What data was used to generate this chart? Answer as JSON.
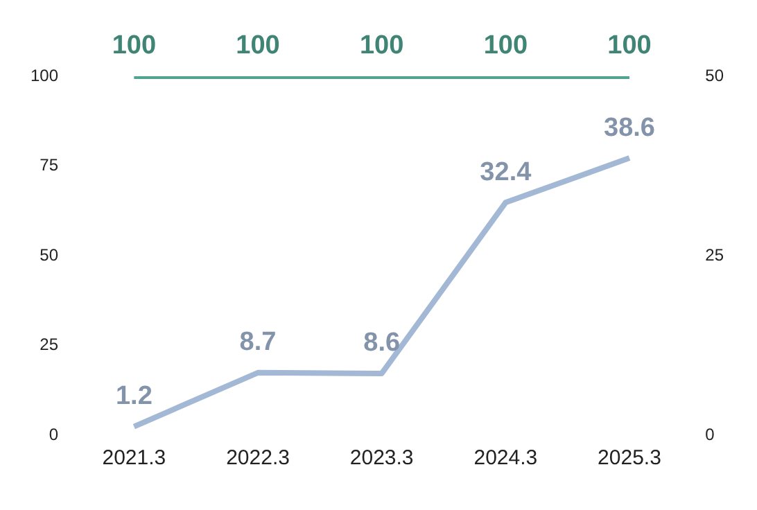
{
  "chart_data": {
    "type": "line",
    "categories": [
      "2021.3",
      "2022.3",
      "2023.3",
      "2024.3",
      "2025.3"
    ],
    "series": [
      {
        "color": "#4fa592",
        "values": [
          100,
          100,
          100,
          100,
          100
        ]
      },
      {
        "color": "#a3b8d5",
        "values": [
          1.2,
          8.7,
          8.6,
          32.4,
          38.6
        ],
        "axis": "y2"
      }
    ],
    "ylim": [
      0,
      100
    ],
    "yticks": [
      0,
      25,
      50,
      75,
      100
    ],
    "y2lim": [
      0,
      50
    ],
    "y2ticks": [
      0,
      25,
      50
    ],
    "grid": false,
    "legend": false,
    "marker": "none",
    "line_style": "solid",
    "data_labels": true
  }
}
